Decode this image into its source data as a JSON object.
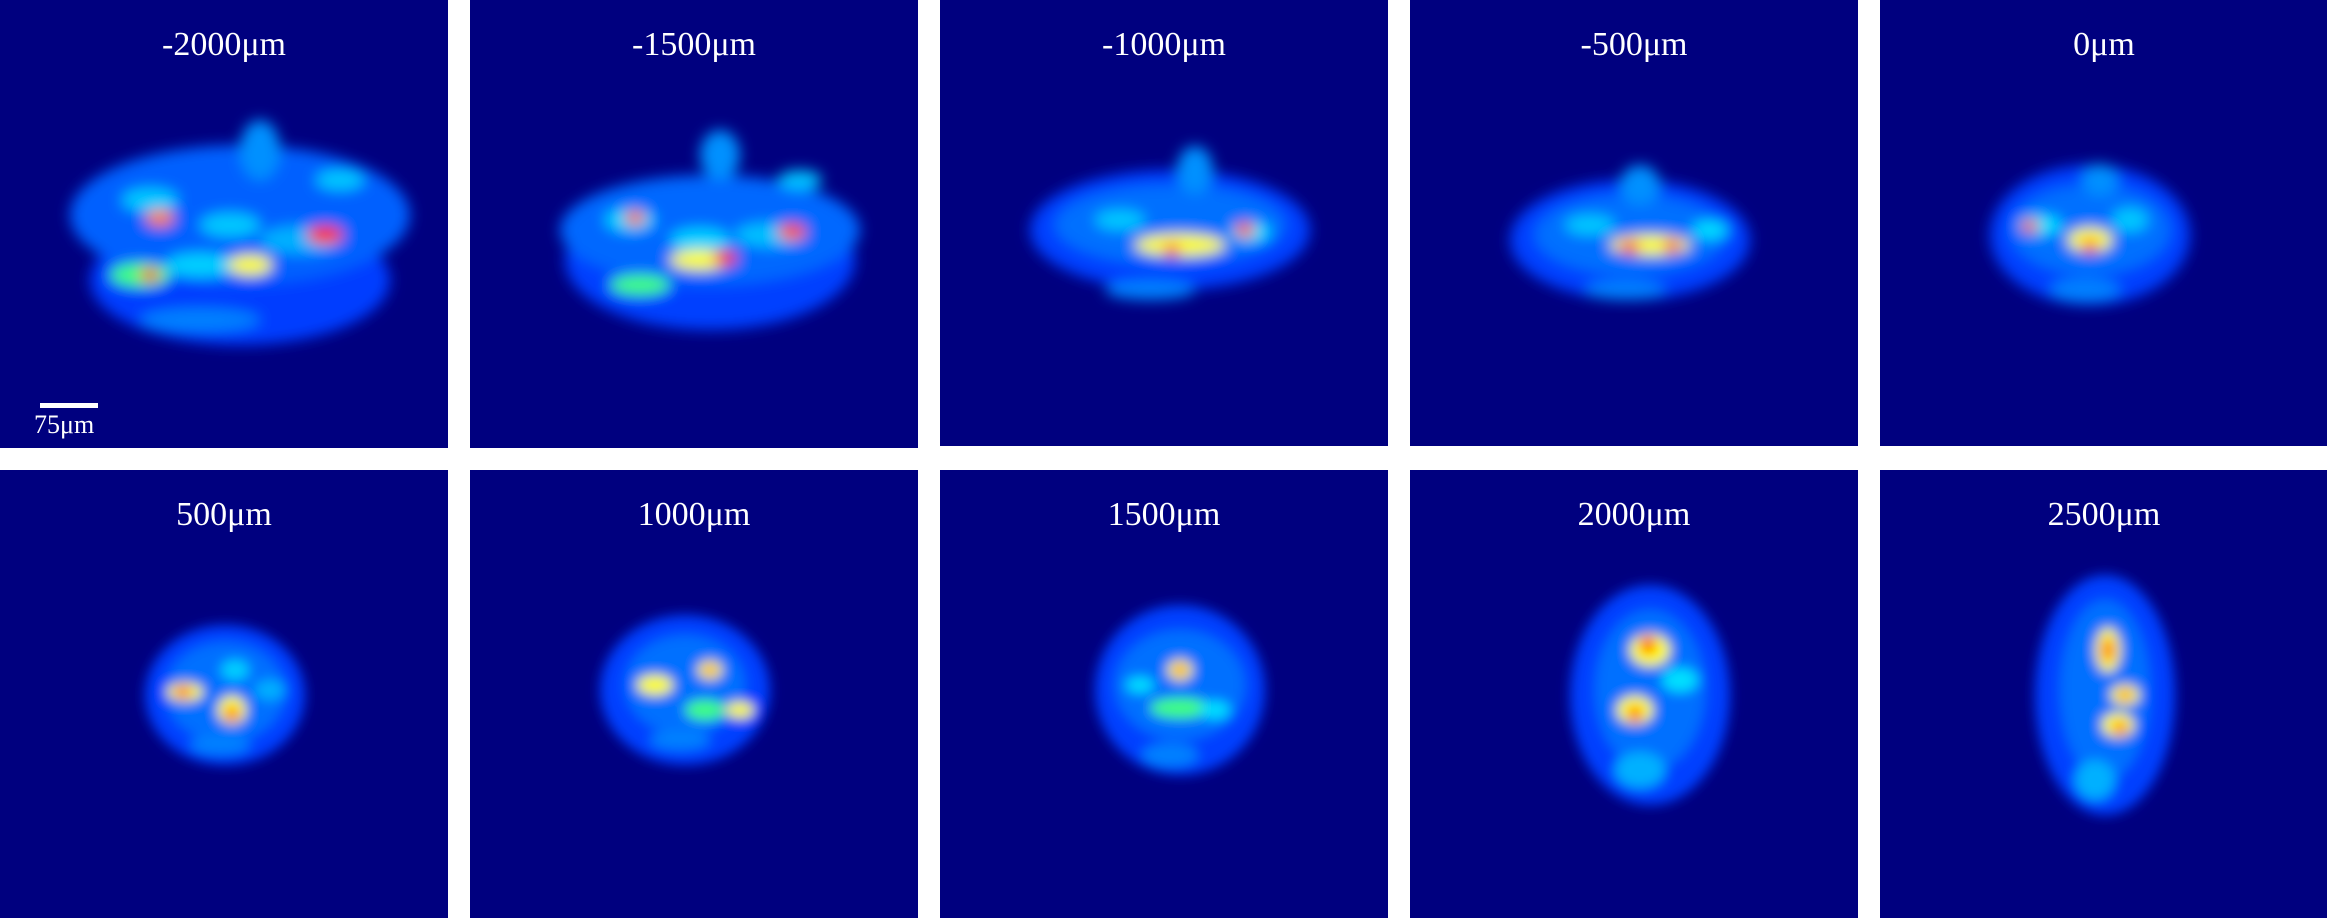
{
  "colormap": {
    "background": "#00007f",
    "low": "#0050ff",
    "mid": "#00c8ff",
    "high_mid": "#ffff00",
    "peak": "#cc0000"
  },
  "scale_bar": {
    "label": "75μm"
  },
  "panels": [
    {
      "label": "-2000μm"
    },
    {
      "label": "-1500μm"
    },
    {
      "label": "-1000μm"
    },
    {
      "label": "-500μm"
    },
    {
      "label": "0μm"
    },
    {
      "label": "500μm"
    },
    {
      "label": "1000μm"
    },
    {
      "label": "1500μm"
    },
    {
      "label": "2000μm"
    },
    {
      "label": "2500μm"
    }
  ]
}
